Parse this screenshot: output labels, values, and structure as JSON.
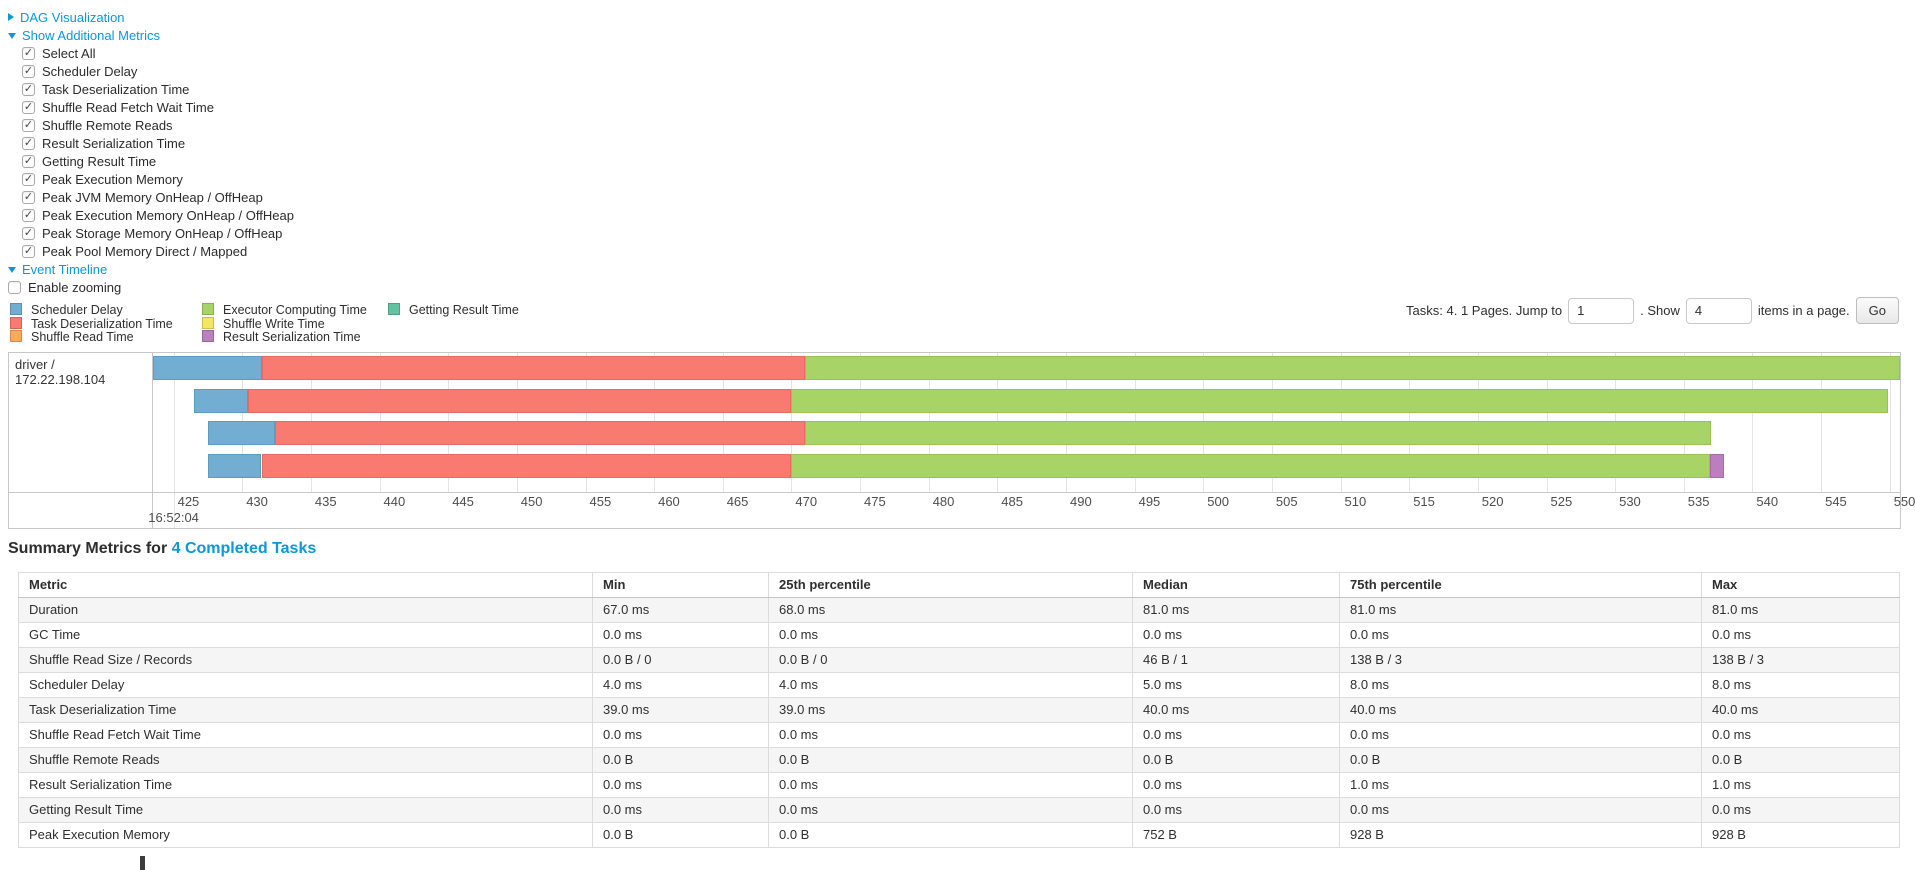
{
  "colors": {
    "link": "#0b97d9"
  },
  "sections": {
    "dag": {
      "label": "DAG Visualization",
      "state": "collapsed"
    },
    "additional_metrics": {
      "label": "Show Additional Metrics",
      "state": "expanded"
    },
    "event_timeline": {
      "label": "Event Timeline",
      "state": "expanded"
    }
  },
  "metric_checkboxes": [
    {
      "label": "Select All",
      "checked": true
    },
    {
      "label": "Scheduler Delay",
      "checked": true
    },
    {
      "label": "Task Deserialization Time",
      "checked": true
    },
    {
      "label": "Shuffle Read Fetch Wait Time",
      "checked": true
    },
    {
      "label": "Shuffle Remote Reads",
      "checked": true
    },
    {
      "label": "Result Serialization Time",
      "checked": true
    },
    {
      "label": "Getting Result Time",
      "checked": true
    },
    {
      "label": "Peak Execution Memory",
      "checked": true
    },
    {
      "label": "Peak JVM Memory OnHeap / OffHeap",
      "checked": true
    },
    {
      "label": "Peak Execution Memory OnHeap / OffHeap",
      "checked": true
    },
    {
      "label": "Peak Storage Memory OnHeap / OffHeap",
      "checked": true
    },
    {
      "label": "Peak Pool Memory Direct / Mapped",
      "checked": true
    }
  ],
  "enable_zooming": {
    "label": "Enable zooming",
    "checked": false
  },
  "legend": {
    "columns": [
      [
        {
          "label": "Scheduler Delay",
          "color_key": "scheduler_delay"
        },
        {
          "label": "Task Deserialization Time",
          "color_key": "task_deserialization"
        },
        {
          "label": "Shuffle Read Time",
          "color_key": "shuffle_read"
        }
      ],
      [
        {
          "label": "Executor Computing Time",
          "color_key": "executor_computing"
        },
        {
          "label": "Shuffle Write Time",
          "color_key": "shuffle_write"
        },
        {
          "label": "Result Serialization Time",
          "color_key": "result_serialization"
        }
      ],
      [
        {
          "label": "Getting Result Time",
          "color_key": "getting_result"
        }
      ]
    ]
  },
  "pagination": {
    "prefix": "Tasks: 4. 1 Pages. Jump to",
    "jump_value": "1",
    "middle": ". Show",
    "show_value": "4",
    "suffix": "items in a page.",
    "go_label": "Go"
  },
  "chart_data": {
    "type": "timeline-gantt",
    "title": "Event Timeline",
    "executor_label": "driver / 172.22.198.104",
    "x_axis_note": "milliseconds within second 16:52:04",
    "x_min": 423.5,
    "x_max": 550.75,
    "ticks": [
      425,
      430,
      435,
      440,
      445,
      450,
      455,
      460,
      465,
      470,
      475,
      480,
      485,
      490,
      495,
      500,
      505,
      510,
      515,
      520,
      525,
      530,
      535,
      540,
      545,
      550
    ],
    "major_tick": 425,
    "major_tick_label": "16:52:04",
    "series_colors": {
      "scheduler_delay": "#72AED2",
      "task_deserialization": "#F97A71",
      "shuffle_read": "#FBAA5C",
      "executor_computing": "#A8D467",
      "shuffle_write": "#F4E761",
      "result_serialization": "#BA7FBC",
      "getting_result": "#62C2A2"
    },
    "series_border_colors": {
      "scheduler_delay": "#5D9BC1",
      "task_deserialization": "#E96A62",
      "shuffle_read": "#E9944A",
      "executor_computing": "#94C453",
      "shuffle_write": "#DED14F",
      "result_serialization": "#A76BA9",
      "getting_result": "#4FAE8F"
    },
    "tasks": [
      {
        "segments": [
          {
            "series": "scheduler_delay",
            "start": 423.5,
            "end": 431.4
          },
          {
            "series": "task_deserialization",
            "start": 431.4,
            "end": 471.0
          },
          {
            "series": "executor_computing",
            "start": 471.0,
            "end": 550.8
          }
        ]
      },
      {
        "segments": [
          {
            "series": "scheduler_delay",
            "start": 426.5,
            "end": 430.4
          },
          {
            "series": "task_deserialization",
            "start": 430.4,
            "end": 470.0
          },
          {
            "series": "executor_computing",
            "start": 470.0,
            "end": 549.9
          }
        ]
      },
      {
        "segments": [
          {
            "series": "scheduler_delay",
            "start": 427.5,
            "end": 432.4
          },
          {
            "series": "task_deserialization",
            "start": 432.4,
            "end": 471.0
          },
          {
            "series": "executor_computing",
            "start": 471.0,
            "end": 537.0
          }
        ]
      },
      {
        "segments": [
          {
            "series": "scheduler_delay",
            "start": 427.5,
            "end": 431.4
          },
          {
            "series": "task_deserialization",
            "start": 431.4,
            "end": 470.0
          },
          {
            "series": "executor_computing",
            "start": 470.0,
            "end": 536.9
          },
          {
            "series": "result_serialization",
            "start": 536.9,
            "end": 537.95
          }
        ]
      }
    ]
  },
  "summary": {
    "title_prefix": "Summary Metrics for ",
    "title_link": "4 Completed Tasks",
    "columns": [
      "Metric",
      "Min",
      "25th percentile",
      "Median",
      "75th percentile",
      "Max"
    ],
    "rows": [
      [
        "Duration",
        "67.0 ms",
        "68.0 ms",
        "81.0 ms",
        "81.0 ms",
        "81.0 ms"
      ],
      [
        "GC Time",
        "0.0 ms",
        "0.0 ms",
        "0.0 ms",
        "0.0 ms",
        "0.0 ms"
      ],
      [
        "Shuffle Read Size / Records",
        "0.0 B / 0",
        "0.0 B / 0",
        "46 B / 1",
        "138 B / 3",
        "138 B / 3"
      ],
      [
        "Scheduler Delay",
        "4.0 ms",
        "4.0 ms",
        "5.0 ms",
        "8.0 ms",
        "8.0 ms"
      ],
      [
        "Task Deserialization Time",
        "39.0 ms",
        "39.0 ms",
        "40.0 ms",
        "40.0 ms",
        "40.0 ms"
      ],
      [
        "Shuffle Read Fetch Wait Time",
        "0.0 ms",
        "0.0 ms",
        "0.0 ms",
        "0.0 ms",
        "0.0 ms"
      ],
      [
        "Shuffle Remote Reads",
        "0.0 B",
        "0.0 B",
        "0.0 B",
        "0.0 B",
        "0.0 B"
      ],
      [
        "Result Serialization Time",
        "0.0 ms",
        "0.0 ms",
        "0.0 ms",
        "1.0 ms",
        "1.0 ms"
      ],
      [
        "Getting Result Time",
        "0.0 ms",
        "0.0 ms",
        "0.0 ms",
        "0.0 ms",
        "0.0 ms"
      ],
      [
        "Peak Execution Memory",
        "0.0 B",
        "0.0 B",
        "752 B",
        "928 B",
        "928 B"
      ]
    ]
  }
}
